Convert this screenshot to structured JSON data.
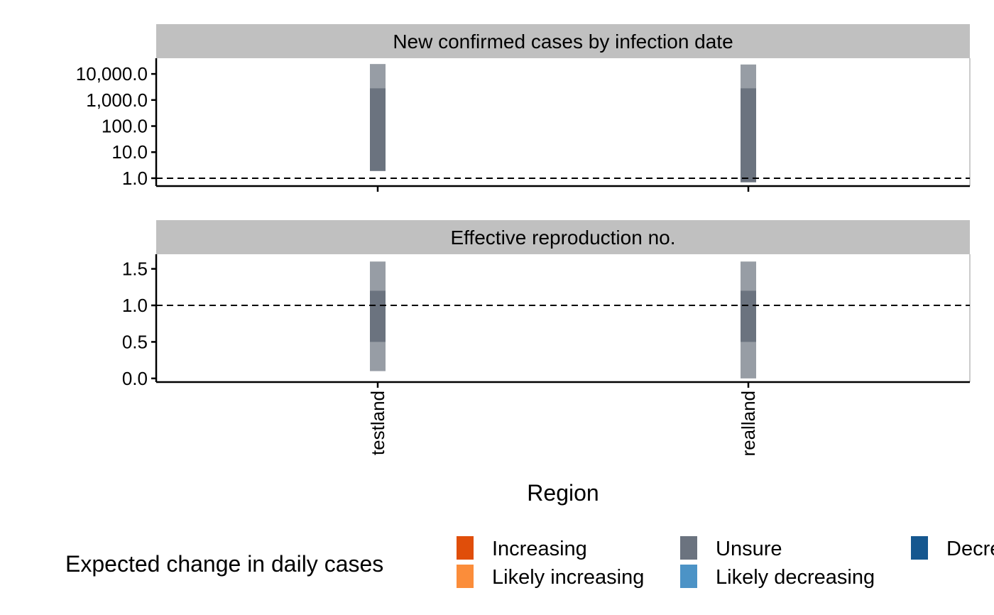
{
  "chart_data": {
    "type": "bar",
    "xlabel": "Region",
    "categories": [
      "testland",
      "realland"
    ],
    "colors": {
      "Increasing": "#e04e0a",
      "Likely increasing": "#fb8d3a",
      "Unsure": "#6b737f",
      "Likely decreasing": "#4c93c6",
      "Decreasing": "#15578f",
      "strip_background": "#c0c0c0",
      "reference_line": "#000000"
    },
    "legend": {
      "title": "Expected change in daily cases",
      "position": "bottom",
      "entries": [
        {
          "label": "Increasing",
          "color_key": "Increasing"
        },
        {
          "label": "Likely increasing",
          "color_key": "Likely increasing"
        },
        {
          "label": "Unsure",
          "color_key": "Unsure"
        },
        {
          "label": "Likely decreasing",
          "color_key": "Likely decreasing"
        },
        {
          "label": "Decreasing",
          "color_key": "Decreasing"
        }
      ]
    },
    "panels": [
      {
        "title": "New confirmed cases by infection date",
        "yscale": "log10",
        "ylim": [
          0.5,
          40000
        ],
        "yticks": [
          1,
          10,
          100,
          1000,
          10000
        ],
        "ytick_labels": [
          "1.0",
          "10.0",
          "100.0",
          "1,000.0",
          "10,000.0"
        ],
        "reference_line": 1,
        "bars": [
          {
            "region": "testland",
            "estimate": "Unsure",
            "outer": [
              1.9,
              24000
            ],
            "inner": [
              1.9,
              2800
            ]
          },
          {
            "region": "realland",
            "estimate": "Unsure",
            "outer": [
              0.7,
              23000
            ],
            "inner": [
              0.7,
              2800
            ]
          }
        ]
      },
      {
        "title": "Effective reproduction no.",
        "yscale": "linear",
        "ylim": [
          -0.05,
          1.7
        ],
        "yticks": [
          0,
          0.5,
          1,
          1.5
        ],
        "ytick_labels": [
          "0.0",
          "0.5",
          "1.0",
          "1.5"
        ],
        "reference_line": 1,
        "bars": [
          {
            "region": "testland",
            "estimate": "Unsure",
            "outer": [
              0.1,
              1.6
            ],
            "inner": [
              0.5,
              1.2
            ]
          },
          {
            "region": "realland",
            "estimate": "Unsure",
            "outer": [
              0.0,
              1.6
            ],
            "inner": [
              0.5,
              1.2
            ]
          }
        ]
      }
    ]
  }
}
